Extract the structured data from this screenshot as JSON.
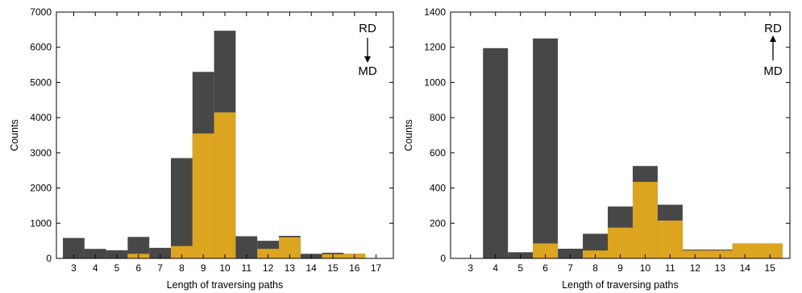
{
  "colors": {
    "dark": "#474747",
    "gold": "#dda41f"
  },
  "chart_data": [
    {
      "type": "bar",
      "stacked": false,
      "xlabel": "Length of traversing paths",
      "ylabel": "Counts",
      "ylim": [
        0,
        7000
      ],
      "yticks": [
        0,
        1000,
        2000,
        3000,
        4000,
        5000,
        6000,
        7000
      ],
      "xlim": [
        2.2,
        17.8
      ],
      "categories": [
        3,
        4,
        5,
        6,
        7,
        8,
        9,
        10,
        11,
        12,
        13,
        14,
        15,
        16,
        17
      ],
      "series": [
        {
          "color": "dark",
          "values": [
            580,
            270,
            230,
            610,
            300,
            2850,
            5300,
            6470,
            630,
            500,
            640,
            130,
            160,
            130,
            0
          ]
        },
        {
          "color": "gold",
          "values": [
            0,
            0,
            0,
            130,
            0,
            350,
            3550,
            4150,
            0,
            270,
            600,
            0,
            120,
            130,
            0
          ]
        }
      ],
      "annotation": {
        "top": "RD",
        "bottom": "MD",
        "arrow": "down"
      }
    },
    {
      "type": "bar",
      "stacked": false,
      "xlabel": "Length of traversing paths",
      "ylabel": "Counts",
      "ylim": [
        0,
        1400
      ],
      "yticks": [
        0,
        200,
        400,
        600,
        800,
        1000,
        1200,
        1400
      ],
      "xlim": [
        2.2,
        15.8
      ],
      "categories": [
        3,
        4,
        5,
        6,
        7,
        8,
        9,
        10,
        11,
        12,
        13,
        14,
        15
      ],
      "series": [
        {
          "color": "dark",
          "values": [
            0,
            1195,
            35,
            1250,
            55,
            140,
            295,
            525,
            305,
            50,
            50,
            85,
            85
          ]
        },
        {
          "color": "gold",
          "values": [
            0,
            0,
            0,
            85,
            0,
            45,
            175,
            435,
            215,
            45,
            45,
            85,
            85
          ]
        }
      ],
      "annotation": {
        "top": "RD",
        "bottom": "MD",
        "arrow": "up"
      }
    }
  ]
}
